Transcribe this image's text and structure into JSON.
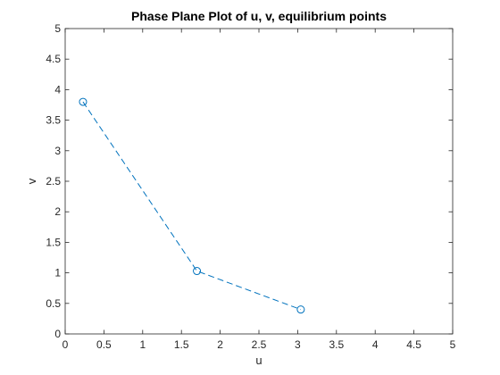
{
  "chart_data": {
    "type": "line",
    "title": "Phase Plane Plot of u, v, equilibrium points",
    "xlabel": "u",
    "ylabel": "v",
    "xlim": [
      0,
      5
    ],
    "ylim": [
      0,
      5
    ],
    "xticks": [
      0,
      0.5,
      1,
      1.5,
      2,
      2.5,
      3,
      3.5,
      4,
      4.5,
      5
    ],
    "yticks": [
      0,
      0.5,
      1,
      1.5,
      2,
      2.5,
      3,
      3.5,
      4,
      4.5,
      5
    ],
    "xtick_labels": [
      "0",
      "0.5",
      "1",
      "1.5",
      "2",
      "2.5",
      "3",
      "3.5",
      "4",
      "4.5",
      "5"
    ],
    "ytick_labels": [
      "0",
      "0.5",
      "1",
      "1.5",
      "2",
      "2.5",
      "3",
      "3.5",
      "4",
      "4.5",
      "5"
    ],
    "grid": false,
    "series": [
      {
        "name": "equilibrium points",
        "x": [
          0.23,
          1.7,
          3.04
        ],
        "y": [
          3.8,
          1.03,
          0.4
        ],
        "line_style": "dashed",
        "marker": "circle",
        "color": "#0072BD"
      }
    ]
  }
}
